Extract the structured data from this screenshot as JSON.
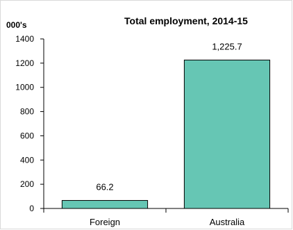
{
  "chart_data": {
    "type": "bar",
    "title": "Total employment, 2014-15",
    "unit_label": "000's",
    "categories": [
      "Foreign",
      "Australia"
    ],
    "values": [
      66.2,
      1225.7
    ],
    "data_labels": [
      "66.2",
      "1,225.7"
    ],
    "ylim": [
      0,
      1400
    ],
    "yticks": [
      0,
      200,
      400,
      600,
      800,
      1000,
      1200,
      1400
    ],
    "ytick_labels": [
      "0",
      "200",
      "400",
      "600",
      "800",
      "1000",
      "1200",
      "1400"
    ],
    "grid": false,
    "bar_color": "#66c6b4",
    "bar_edge_color": "#000000"
  }
}
